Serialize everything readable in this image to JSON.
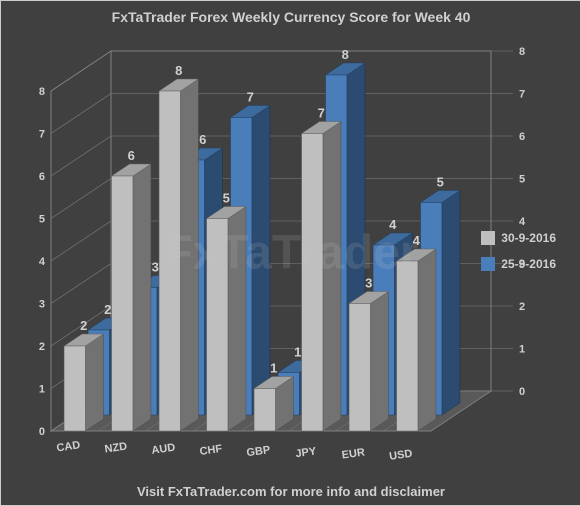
{
  "title": "FxTaTrader Forex Weekly Currency Score for Week 40",
  "footer": "Visit FxTaTrader.com for more info and disclaimer",
  "watermark": "FxTaTrader",
  "chart": {
    "type": "bar3d",
    "categories": [
      "CAD",
      "NZD",
      "AUD",
      "CHF",
      "GBP",
      "JPY",
      "EUR",
      "USD"
    ],
    "series": [
      {
        "name": "30-9-2016",
        "color": "#bfbfbf",
        "values": [
          2,
          6,
          8,
          5,
          1,
          7,
          3,
          4
        ]
      },
      {
        "name": "25-9-2016",
        "color": "#4a7ebb",
        "values": [
          2,
          3,
          6,
          7,
          1,
          8,
          4,
          5
        ]
      }
    ],
    "ylim": [
      0,
      8
    ],
    "ytick_step": 1,
    "floor_color": "#595959",
    "wall_color": "#404040",
    "grid_color": "#808080",
    "text_color": "#d0d0d0"
  }
}
